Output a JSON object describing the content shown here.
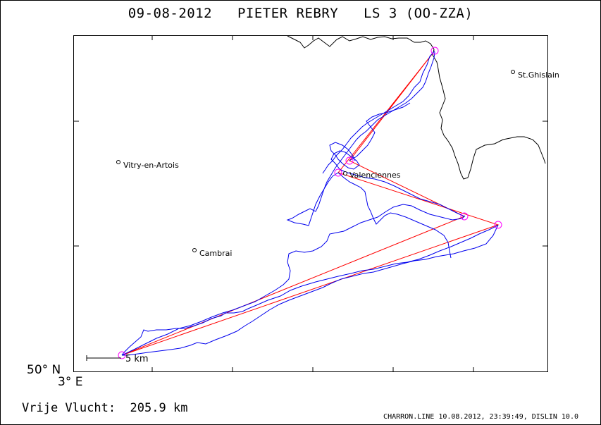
{
  "title": {
    "date": "09-08-2012",
    "pilot": "PIETER REBRY",
    "aircraft": "LS 3 (OO-ZZA)"
  },
  "places": [
    {
      "name": "St.Ghislain"
    },
    {
      "name": "Vitry-en-Artois"
    },
    {
      "name": "Valenciennes"
    },
    {
      "name": "Cambrai"
    }
  ],
  "scale_label": "5 km",
  "coordinates": {
    "lat": "50° N",
    "lon": "3° E"
  },
  "flight": {
    "label": "Vrije Vlucht:",
    "distance": "205.9 km"
  },
  "credit": "CHARRON.LINE 10.08.2012, 23:39:49, DISLIN 10.0",
  "colors": {
    "track": "#0000ee",
    "task": "#ff0000",
    "turnpoint": "#ff00ff",
    "border": "#000000"
  }
}
